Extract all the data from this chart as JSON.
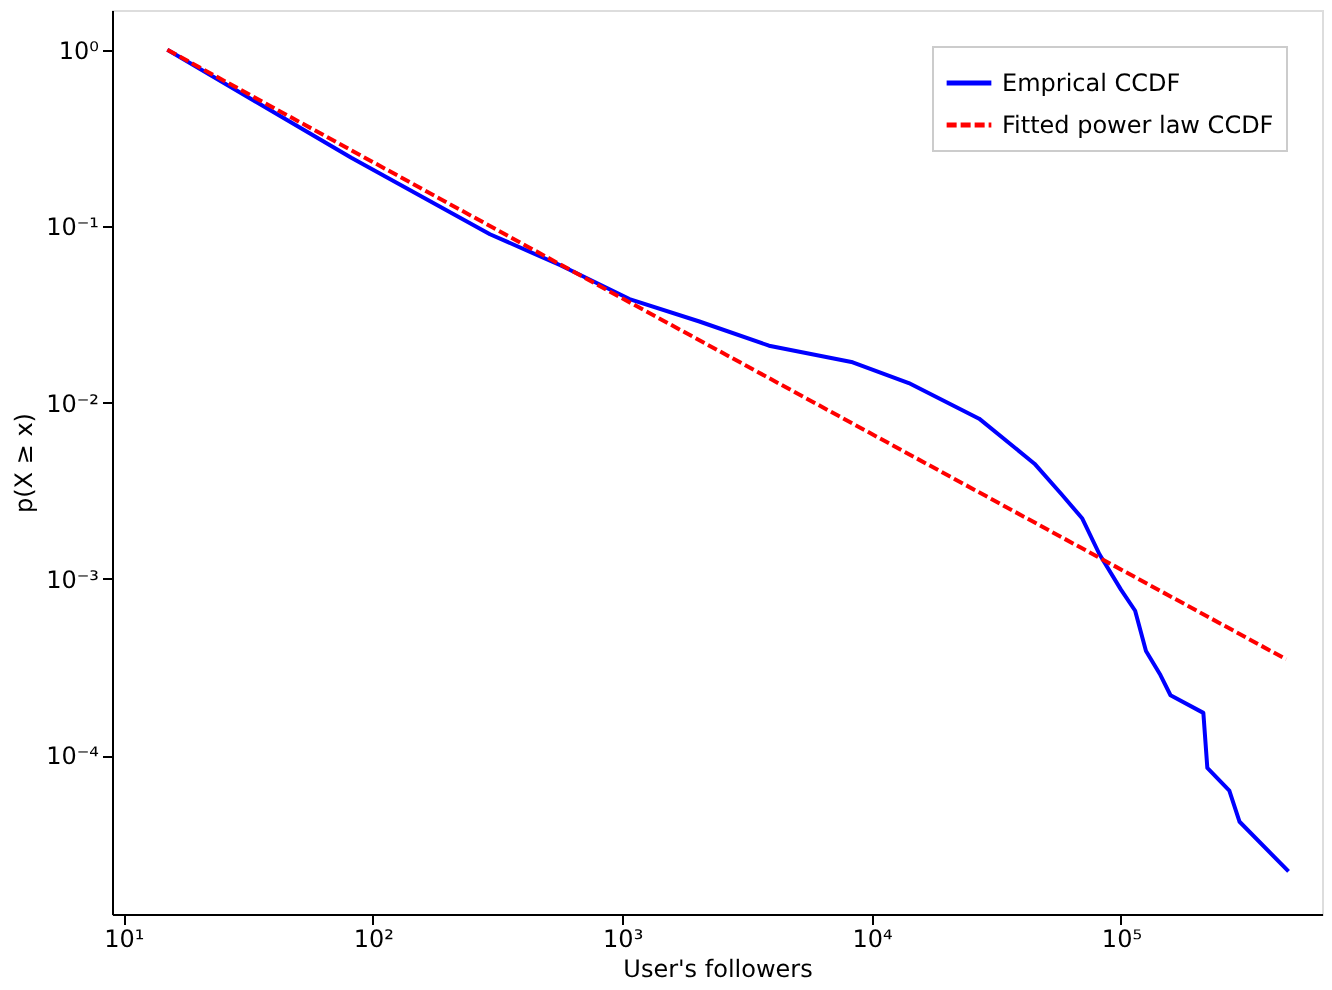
{
  "chart_data": {
    "type": "line",
    "xlabel": "User's followers",
    "ylabel": "p(X ≥ x)",
    "log": "xy",
    "grid": false,
    "legend": "top right",
    "marker": "none",
    "xlim": [
      9,
      640000
    ],
    "ylim": [
      1.26e-05,
      1.68
    ],
    "xticks": [
      {
        "value": 10,
        "label": "10¹"
      },
      {
        "value": 100,
        "label": "10²"
      },
      {
        "value": 1000,
        "label": "10³"
      },
      {
        "value": 10000,
        "label": "10⁴"
      },
      {
        "value": 100000,
        "label": "10⁵"
      }
    ],
    "yticks": [
      {
        "value": 1,
        "label": "10⁰"
      },
      {
        "value": 0.1,
        "label": "10⁻¹"
      },
      {
        "value": 0.01,
        "label": "10⁻²"
      },
      {
        "value": 0.001,
        "label": "10⁻³"
      },
      {
        "value": 0.0001,
        "label": "10⁻⁴"
      }
    ],
    "series": [
      {
        "name": "Emprical CCDF",
        "color": "#0000ff",
        "line_style": "solid",
        "x": [
          15,
          82,
          295,
          565,
          1070,
          2040,
          3880,
          8400,
          14100,
          27000,
          45000,
          58000,
          70000,
          82000,
          100000,
          114000,
          126000,
          144000,
          158000,
          214000,
          222000,
          272000,
          299000,
          470000
        ],
        "values": [
          1.0,
          0.244,
          0.09,
          0.06,
          0.0386,
          0.0288,
          0.021,
          0.0169,
          0.0129,
          0.0081,
          0.0045,
          0.003,
          0.0022,
          0.00138,
          0.00087,
          0.00066,
          0.00039,
          0.000285,
          0.000219,
          0.000174,
          8.5e-05,
          6.3e-05,
          4.2e-05,
          2.2e-05
        ]
      },
      {
        "name": "Fitted power law CCDF",
        "color": "#ff0000",
        "line_style": "dashed",
        "x": [
          15,
          1000,
          460000
        ],
        "values": [
          1.0,
          0.039,
          0.00035
        ]
      }
    ]
  }
}
